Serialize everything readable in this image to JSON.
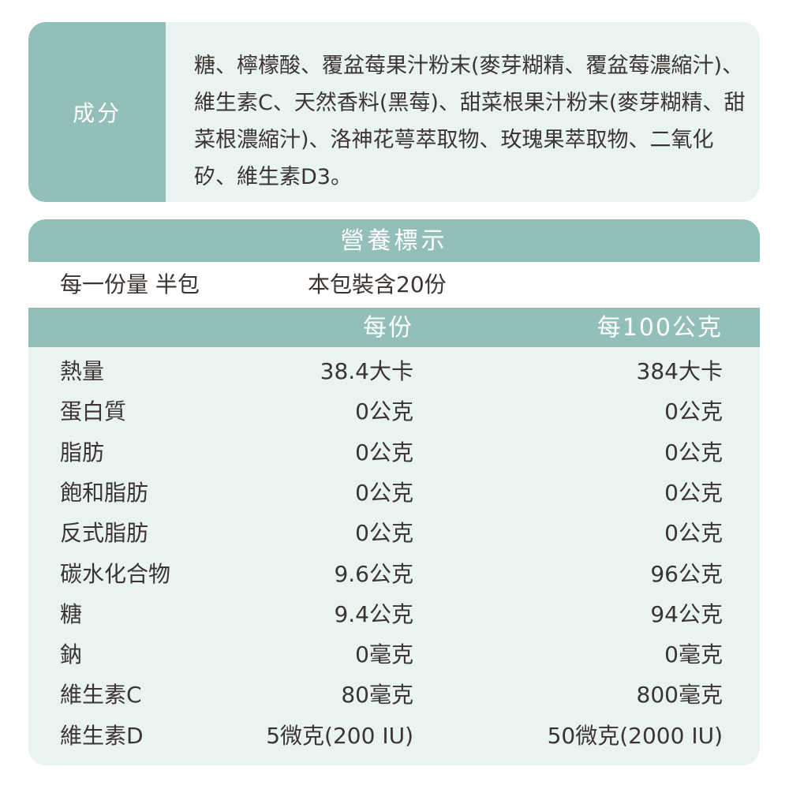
{
  "ingredients": {
    "label": "成分",
    "text": "糖、檸檬酸、覆盆莓果汁粉末(麥芽糊精、覆盆莓濃縮汁)、維生素C、天然香料(黑莓)、甜菜根果汁粉末(麥芽糊精、甜菜根濃縮汁)、洛神花萼萃取物、玫瑰果萃取物、二氧化矽、維生素D3。"
  },
  "nutrition": {
    "title": "營養標示",
    "serving_size": "每一份量 半包",
    "servings_per_pack": "本包裝含20份",
    "col_per_serving": "每份",
    "col_per_100g": "每100公克",
    "rows": [
      {
        "name": "熱量",
        "serving": "38.4大卡",
        "per100": "384大卡"
      },
      {
        "name": "蛋白質",
        "serving": "0公克",
        "per100": "0公克"
      },
      {
        "name": "脂肪",
        "serving": "0公克",
        "per100": "0公克"
      },
      {
        "name": "飽和脂肪",
        "serving": "0公克",
        "per100": "0公克"
      },
      {
        "name": "反式脂肪",
        "serving": "0公克",
        "per100": "0公克"
      },
      {
        "name": "碳水化合物",
        "serving": "9.6公克",
        "per100": "96公克"
      },
      {
        "name": "糖",
        "serving": "9.4公克",
        "per100": "94公克"
      },
      {
        "name": "鈉",
        "serving": "0毫克",
        "per100": "0毫克"
      },
      {
        "name": "維生素C",
        "serving": "80毫克",
        "per100": "800毫克"
      },
      {
        "name": "維生素D",
        "serving": "5微克(200 IU)",
        "per100": "50微克(2000 IU)"
      }
    ]
  },
  "colors": {
    "accent": "#93bfb9",
    "background": "#e9f3f1",
    "text": "#3b3431"
  }
}
